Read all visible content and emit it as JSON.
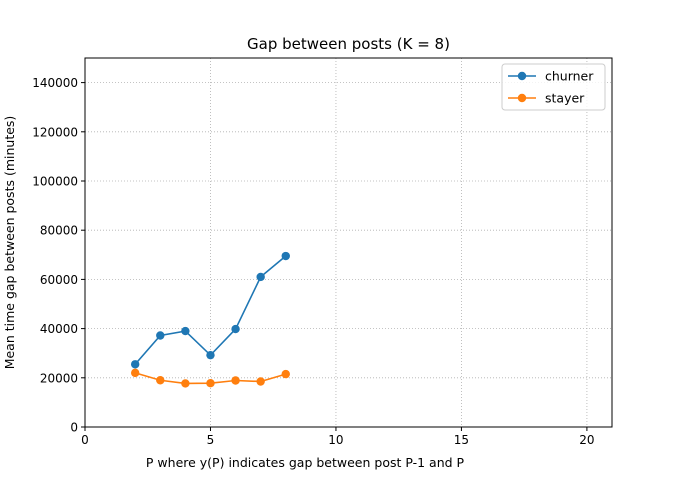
{
  "chart_data": {
    "type": "line",
    "title": "Gap between posts (K = 8)",
    "xlabel": "P where y(P) indicates gap between post P-1 and P",
    "ylabel": "Mean time gap between posts (minutes)",
    "xlim": [
      0,
      21
    ],
    "ylim": [
      0,
      150000
    ],
    "xticks": [
      0,
      5,
      10,
      15,
      20
    ],
    "yticks": [
      0,
      20000,
      40000,
      60000,
      80000,
      100000,
      120000,
      140000
    ],
    "grid": true,
    "legend_position": "top-right",
    "series": [
      {
        "name": "churner",
        "color": "#1f77b4",
        "x": [
          2,
          3,
          4,
          5,
          6,
          7,
          8
        ],
        "y": [
          25500,
          37200,
          39000,
          29200,
          39800,
          61000,
          69500
        ]
      },
      {
        "name": "stayer",
        "color": "#ff7f0e",
        "x": [
          2,
          3,
          4,
          5,
          6,
          7,
          8
        ],
        "y": [
          22000,
          19000,
          17700,
          17800,
          18900,
          18500,
          21500
        ]
      }
    ]
  }
}
